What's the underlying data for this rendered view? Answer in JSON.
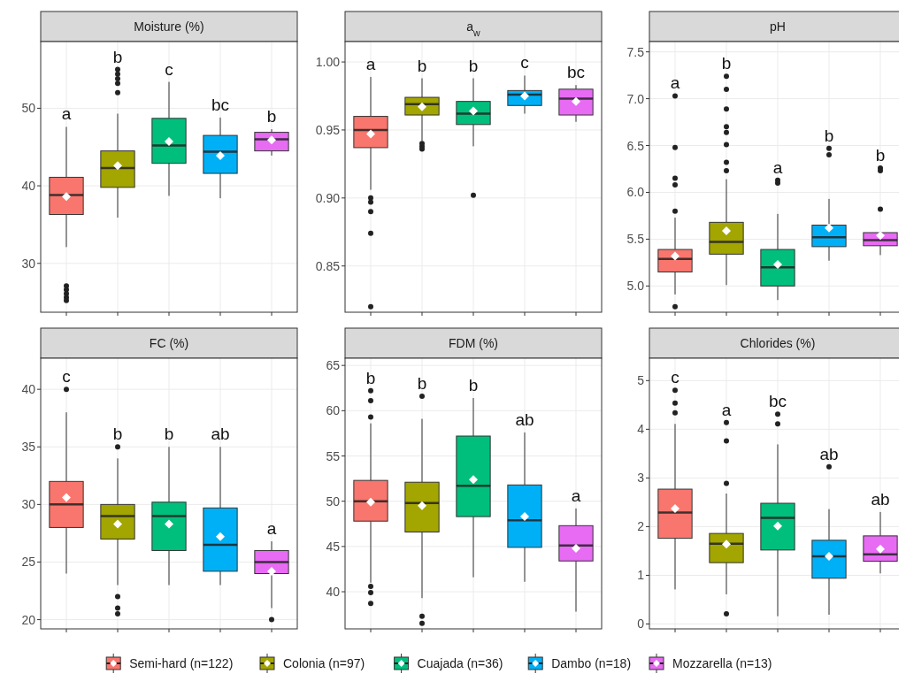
{
  "chart_data": [
    {
      "type": "box",
      "title": "Moisture (%)",
      "categories": [
        null,
        null,
        null,
        null,
        null
      ],
      "ylim": [
        23.7,
        58.6
      ],
      "yticks": [
        30,
        40,
        50
      ],
      "grid": true,
      "tick_labels": "y",
      "series": [
        {
          "color": "#f8766d",
          "boxes": [
            {
              "low": 32.1,
              "q1": 36.3,
              "median": 38.8,
              "q3": 41.1,
              "high": 47.6,
              "mean": 38.6,
              "outliers": [
                27.1,
                26.6,
                26.1,
                25.6,
                25.2
              ]
            },
            null,
            null,
            null,
            null
          ]
        },
        {
          "color": "#a3a500",
          "boxes": [
            null,
            {
              "low": 35.9,
              "q1": 39.8,
              "median": 42.3,
              "q3": 44.5,
              "high": 49.3,
              "mean": 42.6,
              "outliers": [
                52.0,
                53.2,
                53.8,
                54.4,
                55.0
              ]
            },
            null,
            null,
            null
          ]
        },
        {
          "color": "#00bf7d",
          "boxes": [
            null,
            null,
            {
              "low": 38.7,
              "q1": 42.9,
              "median": 45.2,
              "q3": 48.7,
              "high": 53.4,
              "mean": 45.7
            },
            null,
            null
          ]
        },
        {
          "color": "#00b0f6",
          "boxes": [
            null,
            null,
            null,
            {
              "low": 38.4,
              "q1": 41.6,
              "median": 44.4,
              "q3": 46.5,
              "high": 48.8,
              "mean": 43.9
            },
            null
          ]
        },
        {
          "color": "#e76bf3",
          "boxes": [
            null,
            null,
            null,
            null,
            {
              "low": 43.9,
              "q1": 44.5,
              "median": 46.0,
              "q3": 46.9,
              "high": 47.3,
              "mean": 45.9
            }
          ]
        }
      ],
      "annotations": [
        "a",
        "b",
        "c",
        "bc",
        "b"
      ]
    },
    {
      "type": "box",
      "title": "a$_{w}$",
      "categories": [
        null,
        null,
        null,
        null,
        null
      ],
      "ylim": [
        0.816,
        1.015
      ],
      "yticks": [
        {
          "value": 0.85,
          "label": "0.85"
        },
        {
          "value": 0.9,
          "label": "0.90"
        },
        {
          "value": 0.95,
          "label": "0.95"
        },
        {
          "value": 1,
          "label": "1.00"
        }
      ],
      "grid": true,
      "tick_labels": "y",
      "series": [
        {
          "color": "#f8766d",
          "boxes": [
            {
              "low": 0.906,
              "q1": 0.937,
              "median": 0.95,
              "q3": 0.96,
              "high": 0.989,
              "mean": 0.947,
              "outliers": [
                0.9,
                0.897,
                0.89,
                0.874,
                0.82
              ]
            },
            null,
            null,
            null,
            null
          ]
        },
        {
          "color": "#a3a500",
          "boxes": [
            null,
            {
              "low": 0.942,
              "q1": 0.961,
              "median": 0.969,
              "q3": 0.974,
              "high": 0.988,
              "mean": 0.967,
              "outliers": [
                0.94,
                0.938,
                0.936
              ]
            },
            null,
            null,
            null
          ]
        },
        {
          "color": "#00bf7d",
          "boxes": [
            null,
            null,
            {
              "low": 0.938,
              "q1": 0.954,
              "median": 0.962,
              "q3": 0.971,
              "high": 0.988,
              "mean": 0.964,
              "outliers": [
                0.902
              ]
            },
            null,
            null
          ]
        },
        {
          "color": "#00b0f6",
          "boxes": [
            null,
            null,
            null,
            {
              "low": 0.962,
              "q1": 0.968,
              "median": 0.976,
              "q3": 0.979,
              "high": 0.99,
              "mean": 0.975
            },
            null
          ]
        },
        {
          "color": "#e76bf3",
          "boxes": [
            null,
            null,
            null,
            null,
            {
              "low": 0.956,
              "q1": 0.961,
              "median": 0.973,
              "q3": 0.98,
              "high": 0.983,
              "mean": 0.971
            }
          ]
        }
      ],
      "annotations": [
        "a",
        "b",
        "b",
        "c",
        "bc"
      ]
    },
    {
      "type": "box",
      "title": "pH",
      "categories": [
        null,
        null,
        null,
        null,
        null
      ],
      "ylim": [
        4.72,
        7.61
      ],
      "yticks": [
        {
          "value": 5,
          "label": "5.0"
        },
        {
          "value": 5.5,
          "label": "5.5"
        },
        {
          "value": 6,
          "label": "6.0"
        },
        {
          "value": 6.5,
          "label": "6.5"
        },
        {
          "value": 7,
          "label": "7.0"
        },
        {
          "value": 7.5,
          "label": "7.5"
        }
      ],
      "grid": true,
      "tick_labels": "y",
      "series": [
        {
          "color": "#f8766d",
          "boxes": [
            {
              "low": 4.91,
              "q1": 5.15,
              "median": 5.29,
              "q3": 5.39,
              "high": 5.73,
              "mean": 5.32,
              "outliers": [
                7.03,
                6.48,
                6.15,
                6.08,
                5.8,
                4.78
              ]
            },
            null,
            null,
            null,
            null
          ]
        },
        {
          "color": "#a3a500",
          "boxes": [
            null,
            {
              "low": 5.01,
              "q1": 5.34,
              "median": 5.47,
              "q3": 5.68,
              "high": 6.14,
              "mean": 5.59,
              "outliers": [
                6.23,
                6.32,
                6.51,
                6.64,
                6.7,
                6.89,
                7.1,
                7.24
              ]
            },
            null,
            null,
            null
          ]
        },
        {
          "color": "#00bf7d",
          "boxes": [
            null,
            null,
            {
              "low": 4.85,
              "q1": 5.0,
              "median": 5.2,
              "q3": 5.39,
              "high": 5.77,
              "mean": 5.23,
              "outliers": [
                6.1,
                6.13
              ]
            },
            null,
            null
          ]
        },
        {
          "color": "#00b0f6",
          "boxes": [
            null,
            null,
            null,
            {
              "low": 5.27,
              "q1": 5.42,
              "median": 5.52,
              "q3": 5.65,
              "high": 5.93,
              "mean": 5.62,
              "outliers": [
                6.4,
                6.47
              ]
            },
            null
          ]
        },
        {
          "color": "#e76bf3",
          "boxes": [
            null,
            null,
            null,
            null,
            {
              "low": 5.33,
              "q1": 5.43,
              "median": 5.49,
              "q3": 5.57,
              "high": 5.58,
              "mean": 5.54,
              "outliers": [
                5.82,
                6.23,
                6.26
              ]
            }
          ]
        }
      ],
      "annotations": [
        "a",
        "b",
        "a",
        "b",
        "b"
      ]
    },
    {
      "type": "box",
      "title": "FC (%)",
      "categories": [
        null,
        null,
        null,
        null,
        null
      ],
      "ylim": [
        19.2,
        42.7
      ],
      "yticks": [
        20,
        25,
        30,
        35,
        40
      ],
      "grid": true,
      "tick_labels": "y",
      "series": [
        {
          "color": "#f8766d",
          "boxes": [
            {
              "low": 24.0,
              "q1": 28.0,
              "median": 30.0,
              "q3": 32.0,
              "high": 38.0,
              "mean": 30.6,
              "outliers": [
                40.0
              ]
            },
            null,
            null,
            null,
            null
          ]
        },
        {
          "color": "#a3a500",
          "boxes": [
            null,
            {
              "low": 23.0,
              "q1": 27.0,
              "median": 29.0,
              "q3": 30.0,
              "high": 34.0,
              "mean": 28.3,
              "outliers": [
                35.0,
                22.0,
                21.0,
                20.5
              ]
            },
            null,
            null,
            null
          ]
        },
        {
          "color": "#00bf7d",
          "boxes": [
            null,
            null,
            {
              "low": 23.0,
              "q1": 26.0,
              "median": 29.0,
              "q3": 30.2,
              "high": 35.0,
              "mean": 28.3
            },
            null,
            null
          ]
        },
        {
          "color": "#00b0f6",
          "boxes": [
            null,
            null,
            null,
            {
              "low": 23.0,
              "q1": 24.2,
              "median": 26.5,
              "q3": 29.7,
              "high": 35.0,
              "mean": 27.2
            },
            null
          ]
        },
        {
          "color": "#e76bf3",
          "boxes": [
            null,
            null,
            null,
            null,
            {
              "low": 21.0,
              "q1": 24.0,
              "median": 25.0,
              "q3": 26.0,
              "high": 26.8,
              "mean": 24.2,
              "outliers": [
                20.0
              ]
            }
          ]
        }
      ],
      "annotations": [
        "c",
        "b",
        "b",
        "ab",
        "a"
      ]
    },
    {
      "type": "box",
      "title": "FDM (%)",
      "categories": [
        null,
        null,
        null,
        null,
        null
      ],
      "ylim": [
        35.9,
        65.8
      ],
      "yticks": [
        40,
        45,
        50,
        55,
        60,
        65
      ],
      "grid": true,
      "tick_labels": "y",
      "series": [
        {
          "color": "#f8766d",
          "boxes": [
            {
              "low": 41.0,
              "q1": 47.8,
              "median": 50.0,
              "q3": 52.3,
              "high": 58.6,
              "mean": 49.9,
              "outliers": [
                62.2,
                61.1,
                59.3,
                40.6,
                39.9,
                38.7
              ]
            },
            null,
            null,
            null,
            null
          ]
        },
        {
          "color": "#a3a500",
          "boxes": [
            null,
            {
              "low": 39.3,
              "q1": 46.6,
              "median": 49.8,
              "q3": 52.1,
              "high": 59.1,
              "mean": 49.5,
              "outliers": [
                61.6,
                37.3,
                36.5
              ]
            },
            null,
            null,
            null
          ]
        },
        {
          "color": "#00bf7d",
          "boxes": [
            null,
            null,
            {
              "low": 41.6,
              "q1": 48.3,
              "median": 51.7,
              "q3": 57.2,
              "high": 61.4,
              "mean": 52.4
            },
            null,
            null
          ]
        },
        {
          "color": "#00b0f6",
          "boxes": [
            null,
            null,
            null,
            {
              "low": 41.1,
              "q1": 44.9,
              "median": 47.9,
              "q3": 51.8,
              "high": 57.6,
              "mean": 48.3
            },
            null
          ]
        },
        {
          "color": "#e76bf3",
          "boxes": [
            null,
            null,
            null,
            null,
            {
              "low": 37.8,
              "q1": 43.4,
              "median": 45.1,
              "q3": 47.3,
              "high": 49.2,
              "mean": 44.8
            }
          ]
        }
      ],
      "annotations": [
        "b",
        "b",
        "b",
        "ab",
        "a"
      ]
    },
    {
      "type": "box",
      "title": "Chlorides (%)",
      "categories": [
        null,
        null,
        null,
        null,
        null
      ],
      "ylim": [
        -0.1,
        5.46
      ],
      "yticks": [
        0,
        1,
        2,
        3,
        4,
        5
      ],
      "grid": true,
      "tick_labels": "y",
      "legend": "bottom",
      "series": [
        {
          "name": "Semi-hard (n=122)",
          "color": "#f8766d",
          "boxes": [
            {
              "low": 0.71,
              "q1": 1.76,
              "median": 2.29,
              "q3": 2.77,
              "high": 4.11,
              "mean": 2.37,
              "outliers": [
                4.34,
                4.54,
                4.8
              ]
            },
            null,
            null,
            null,
            null
          ]
        },
        {
          "name": "Colonia (n=97)",
          "color": "#a3a500",
          "boxes": [
            null,
            {
              "low": 0.61,
              "q1": 1.26,
              "median": 1.65,
              "q3": 1.86,
              "high": 2.68,
              "mean": 1.64,
              "outliers": [
                4.14,
                3.76,
                2.89,
                0.21
              ]
            },
            null,
            null,
            null
          ]
        },
        {
          "name": "Cuajada (n=36)",
          "color": "#00bf7d",
          "boxes": [
            null,
            null,
            {
              "low": 0.16,
              "q1": 1.52,
              "median": 2.18,
              "q3": 2.48,
              "high": 3.69,
              "mean": 2.01,
              "outliers": [
                4.11,
                4.31
              ]
            },
            null,
            null
          ]
        },
        {
          "name": "Dambo (n=18)",
          "color": "#00b0f6",
          "boxes": [
            null,
            null,
            null,
            {
              "low": 0.19,
              "q1": 0.94,
              "median": 1.39,
              "q3": 1.72,
              "high": 2.36,
              "mean": 1.39,
              "outliers": [
                3.23
              ]
            },
            null
          ]
        },
        {
          "name": "Mozzarella (n=13)",
          "color": "#e76bf3",
          "boxes": [
            null,
            null,
            null,
            null,
            {
              "low": 1.04,
              "q1": 1.29,
              "median": 1.43,
              "q3": 1.81,
              "high": 2.3,
              "mean": 1.54
            }
          ]
        }
      ],
      "annotations": [
        "c",
        "a",
        "bc",
        "ab",
        "ab"
      ]
    }
  ]
}
